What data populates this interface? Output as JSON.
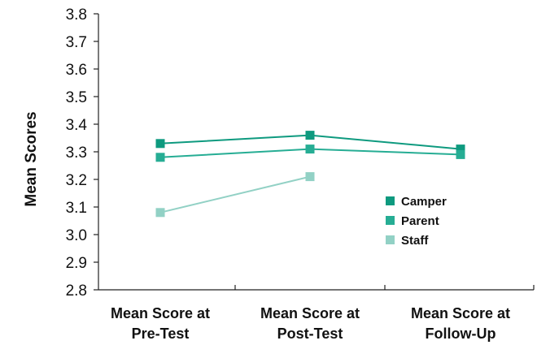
{
  "chart_data": {
    "type": "line",
    "title": "",
    "xlabel": "",
    "ylabel": "Mean Scores",
    "ylim": [
      2.8,
      3.8
    ],
    "yticks": [
      "2.8",
      "2.9",
      "3.0",
      "3.1",
      "3.2",
      "3.3",
      "3.4",
      "3.5",
      "3.6",
      "3.7",
      "3.8"
    ],
    "categories": [
      [
        "Mean Score at",
        "Pre-Test"
      ],
      [
        "Mean Score at",
        "Post-Test"
      ],
      [
        "Mean Score at",
        "Follow-Up"
      ]
    ],
    "grid": false,
    "legend_position": "center-right",
    "series": [
      {
        "name": "Camper",
        "values": [
          3.33,
          3.36,
          3.31
        ],
        "color": "#0e9a7f"
      },
      {
        "name": "Parent",
        "values": [
          3.28,
          3.31,
          3.29
        ],
        "color": "#26ad94"
      },
      {
        "name": "Staff",
        "values": [
          3.08,
          3.21,
          null
        ],
        "color": "#92d1c5"
      }
    ]
  }
}
